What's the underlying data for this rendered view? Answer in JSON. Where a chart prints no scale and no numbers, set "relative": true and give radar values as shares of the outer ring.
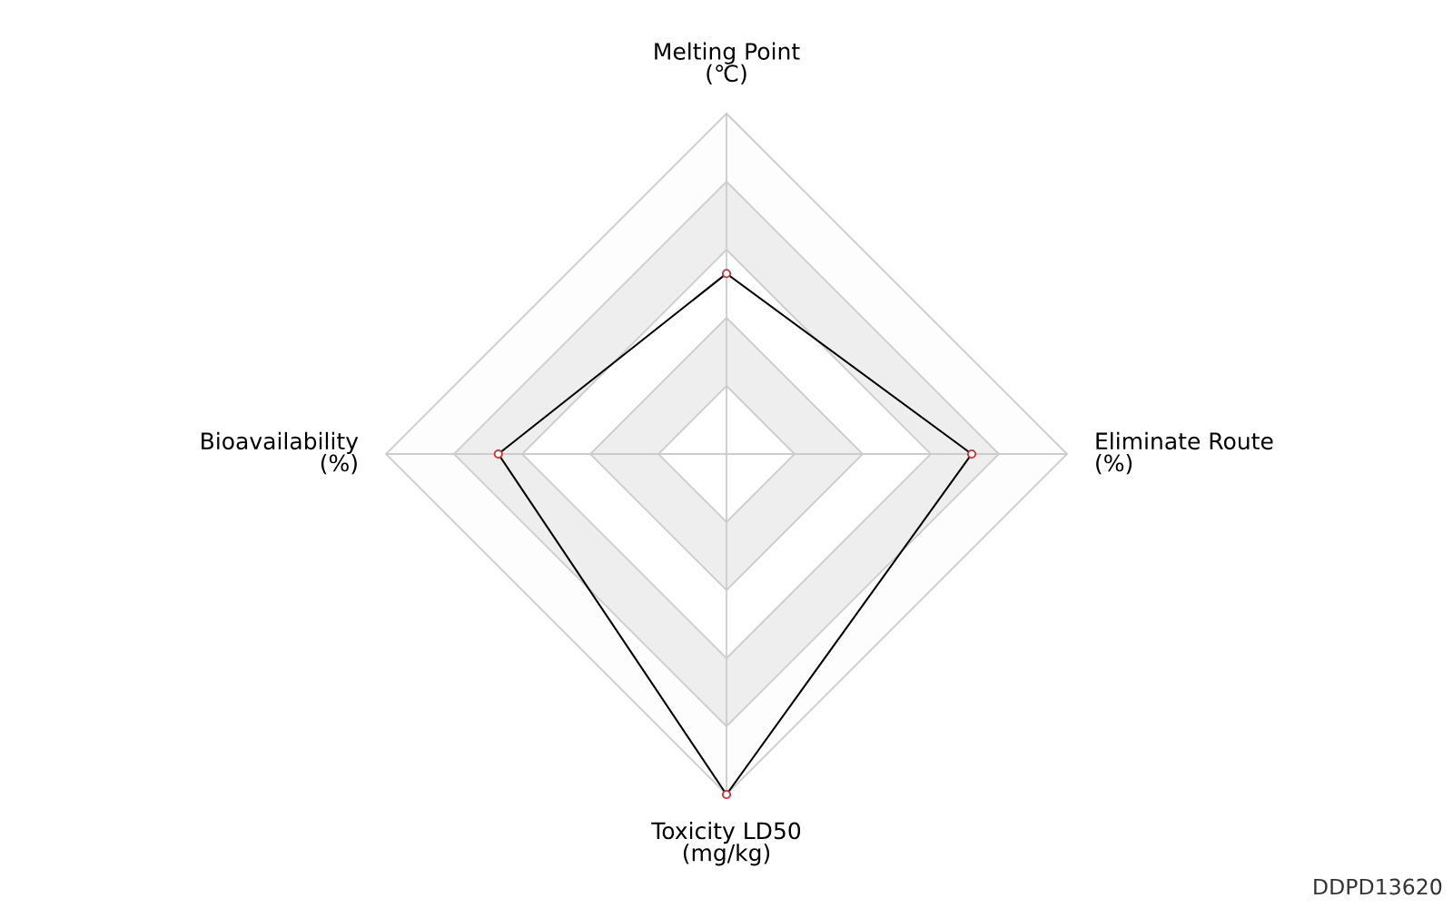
{
  "chart_data": {
    "type": "radar",
    "relative": true,
    "grid": true,
    "marker": "circle",
    "line_style": "solid",
    "categories": [
      "Melting Point\n(℃)",
      "Eliminate Route\n(%)",
      "Toxicity LD50\n(mg/kg)",
      "Bioavailability\n(%)"
    ],
    "series": [
      {
        "color": "#000000",
        "values": [
          0.53,
          0.72,
          1.0,
          0.67
        ]
      }
    ],
    "annotations": [
      "DDPD13620"
    ]
  }
}
